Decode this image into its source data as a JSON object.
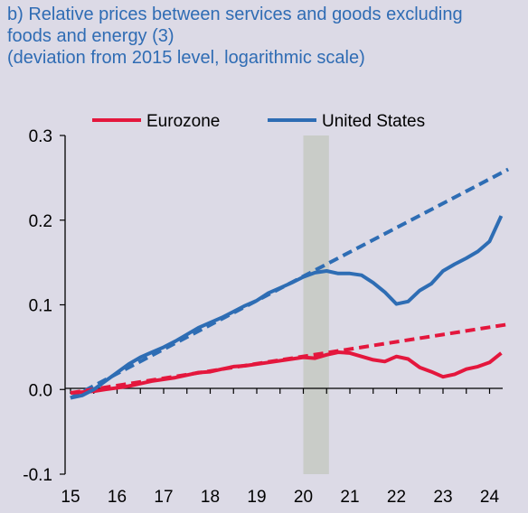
{
  "title": {
    "line1": "b) Relative prices between services and goods excluding",
    "line2": "foods and energy (3)",
    "line3": "(deviation from 2015 level, logarithmic scale)"
  },
  "colors": {
    "eurozone": "#e4173d",
    "united_states": "#2e6db4",
    "shade": "#c9ccc8",
    "background": "#dcdae6"
  },
  "chart_data": {
    "type": "line",
    "title": "b) Relative prices between services and goods excluding foods and energy (3)",
    "subtitle": "(deviation from 2015 level, logarithmic scale)",
    "xlabel": "",
    "ylabel": "",
    "xlim": [
      15,
      24.4
    ],
    "ylim": [
      -0.1,
      0.3
    ],
    "x_ticks": [
      "15",
      "16",
      "17",
      "18",
      "19",
      "20",
      "21",
      "22",
      "23",
      "24"
    ],
    "y_ticks": [
      "0.3",
      "0.2",
      "0.1",
      "0.0",
      "-0.1"
    ],
    "y_tick_values": [
      0.3,
      0.2,
      0.1,
      0.0,
      -0.1
    ],
    "legend": {
      "placement": "top",
      "entries": [
        "Eurozone",
        "United States"
      ]
    },
    "shaded_period": [
      20.0,
      20.55
    ],
    "series": [
      {
        "name": "Eurozone",
        "style": "solid",
        "x": [
          15.0,
          15.25,
          15.5,
          15.75,
          16.0,
          16.25,
          16.5,
          16.75,
          17.0,
          17.25,
          17.5,
          17.75,
          18.0,
          18.25,
          18.5,
          18.75,
          19.0,
          19.25,
          19.5,
          19.75,
          20.0,
          20.25,
          20.5,
          20.75,
          21.0,
          21.25,
          21.5,
          21.75,
          22.0,
          22.25,
          22.5,
          22.75,
          23.0,
          23.25,
          23.5,
          23.75,
          24.0,
          24.25
        ],
        "y": [
          -0.004,
          -0.003,
          -0.002,
          0.0,
          0.002,
          0.004,
          0.007,
          0.01,
          0.012,
          0.014,
          0.017,
          0.02,
          0.021,
          0.024,
          0.027,
          0.028,
          0.03,
          0.032,
          0.034,
          0.036,
          0.038,
          0.037,
          0.041,
          0.044,
          0.043,
          0.039,
          0.035,
          0.033,
          0.039,
          0.036,
          0.026,
          0.021,
          0.015,
          0.018,
          0.024,
          0.027,
          0.032,
          0.043
        ]
      },
      {
        "name": "United States",
        "style": "solid",
        "x": [
          15.0,
          15.25,
          15.5,
          15.75,
          16.0,
          16.25,
          16.5,
          16.75,
          17.0,
          17.25,
          17.5,
          17.75,
          18.0,
          18.25,
          18.5,
          18.75,
          19.0,
          19.25,
          19.5,
          19.75,
          20.0,
          20.25,
          20.5,
          20.75,
          21.0,
          21.25,
          21.5,
          21.75,
          22.0,
          22.25,
          22.5,
          22.75,
          23.0,
          23.25,
          23.5,
          23.75,
          24.0,
          24.25
        ],
        "y": [
          -0.01,
          -0.007,
          0.0,
          0.01,
          0.02,
          0.03,
          0.038,
          0.044,
          0.05,
          0.057,
          0.065,
          0.073,
          0.079,
          0.085,
          0.092,
          0.099,
          0.105,
          0.114,
          0.12,
          0.126,
          0.133,
          0.138,
          0.14,
          0.137,
          0.137,
          0.135,
          0.126,
          0.115,
          0.101,
          0.104,
          0.117,
          0.125,
          0.14,
          0.148,
          0.155,
          0.163,
          0.175,
          0.205
        ]
      },
      {
        "name": "Eurozone",
        "style": "dashed",
        "x": [
          15.0,
          24.4
        ],
        "y": [
          -0.004,
          0.077
        ]
      },
      {
        "name": "United States",
        "style": "dashed",
        "x": [
          15.0,
          24.4
        ],
        "y": [
          -0.01,
          0.26
        ]
      }
    ]
  }
}
